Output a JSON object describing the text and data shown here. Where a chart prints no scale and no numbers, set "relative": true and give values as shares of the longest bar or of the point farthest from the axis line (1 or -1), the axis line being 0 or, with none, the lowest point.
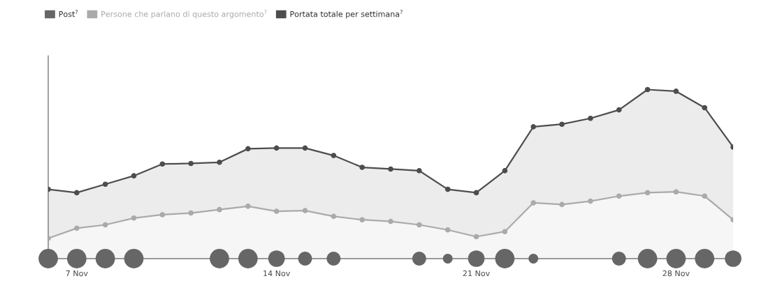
{
  "chart_data": {
    "type": "area",
    "relative": true,
    "legend": "top left",
    "marker": "circle",
    "grid": false,
    "categories": [
      null,
      "7 Nov",
      null,
      null,
      null,
      null,
      null,
      null,
      "14 Nov",
      null,
      null,
      null,
      null,
      null,
      null,
      "21 Nov",
      null,
      null,
      null,
      null,
      null,
      null,
      "28 Nov",
      null,
      null
    ],
    "series": [
      {
        "name": "Post$^{?}$",
        "type": "bubble",
        "color": "#666666",
        "values": [
          0,
          0,
          0,
          0,
          null,
          null,
          0,
          0,
          0,
          0,
          0,
          null,
          null,
          0,
          0,
          0,
          0,
          0,
          null,
          null,
          0,
          0,
          0,
          0,
          0
        ],
        "sizes": [
          1,
          1,
          1,
          1,
          null,
          null,
          1,
          1,
          0.73,
          0.51,
          0.51,
          null,
          null,
          0.51,
          0.25,
          0.73,
          1,
          0.25,
          null,
          null,
          0.51,
          1,
          1,
          1,
          0.73
        ]
      },
      {
        "name": "Persone che parlano di questo argomento$^{?}$",
        "color": "#aaaaaa",
        "values": [
          0.12,
          0.18,
          0.2,
          0.24,
          0.26,
          0.27,
          0.29,
          0.31,
          0.28,
          0.284,
          0.25,
          0.23,
          0.22,
          0.2,
          0.17,
          0.13,
          0.16,
          0.33,
          0.32,
          0.34,
          0.37,
          0.39,
          0.395,
          0.37,
          0.23
        ]
      },
      {
        "name": "Portata totale per settimana$^{?}$",
        "color": "#4d4d4d",
        "values": [
          0.41,
          0.39,
          0.44,
          0.49,
          0.56,
          0.563,
          0.57,
          0.65,
          0.654,
          0.654,
          0.61,
          0.54,
          0.53,
          0.52,
          0.41,
          0.39,
          0.52,
          0.78,
          0.795,
          0.83,
          0.88,
          1.0,
          0.99,
          0.893,
          0.66
        ]
      }
    ]
  }
}
